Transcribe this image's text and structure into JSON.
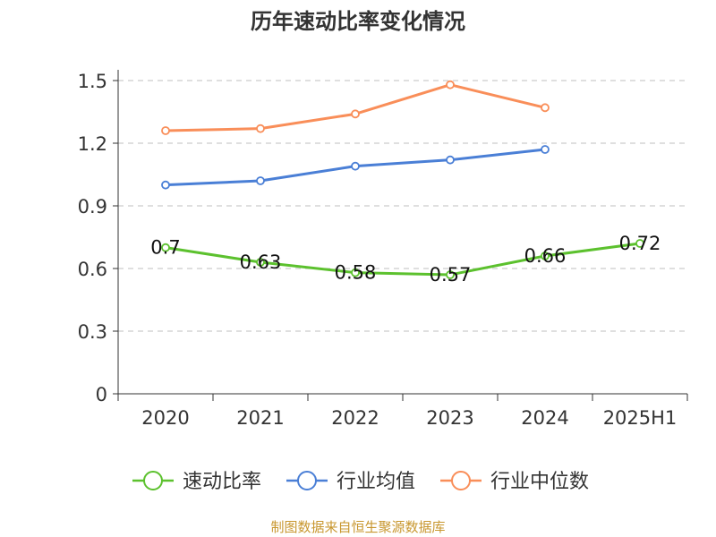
{
  "chart_data": {
    "type": "line",
    "title": "历年速动比率变化情况",
    "categories": [
      "2020",
      "2021",
      "2022",
      "2023",
      "2024",
      "2025H1"
    ],
    "ylim": [
      0,
      1.5
    ],
    "yticks": [
      "0",
      "0.3",
      "0.6",
      "0.9",
      "1.2",
      "1.5"
    ],
    "grid": true,
    "legend_position": "bottom",
    "series": [
      {
        "name": "速动比率",
        "color": "#5cc12e",
        "values": [
          0.7,
          0.63,
          0.58,
          0.57,
          0.66,
          0.72
        ],
        "labels": [
          "0.7",
          "0.63",
          "0.58",
          "0.57",
          "0.66",
          "0.72"
        ]
      },
      {
        "name": "行业均值",
        "color": "#4a7fd6",
        "values": [
          1.0,
          1.02,
          1.09,
          1.12,
          1.17,
          null
        ]
      },
      {
        "name": "行业中位数",
        "color": "#f98e59",
        "values": [
          1.26,
          1.27,
          1.34,
          1.48,
          1.37,
          null
        ]
      }
    ]
  },
  "source": "制图数据来自恒生聚源数据库"
}
